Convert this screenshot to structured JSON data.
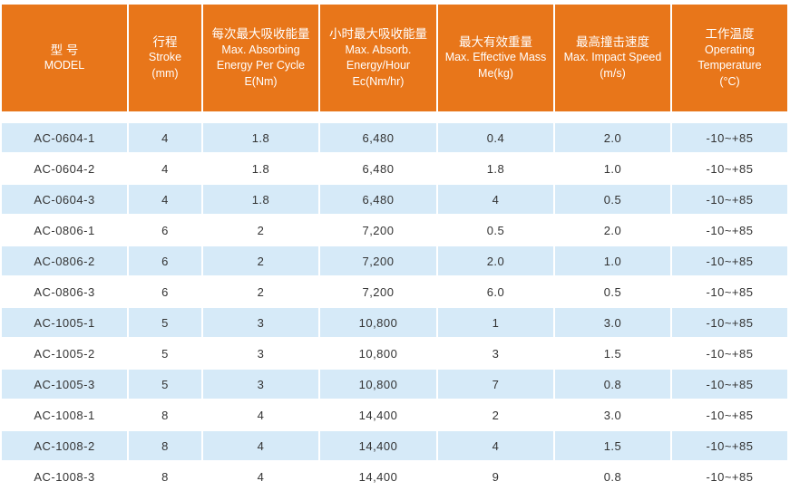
{
  "colors": {
    "header": "#e8761a",
    "stripe": "#d6eaf8"
  },
  "headers": [
    {
      "zh": "型 号",
      "en": [
        "MODEL"
      ]
    },
    {
      "zh": "行程",
      "en": [
        "Stroke",
        "(mm)"
      ]
    },
    {
      "zh": "每次最大吸收能量",
      "en": [
        "Max. Absorbing",
        "Energy Per Cycle",
        "E(Nm)"
      ]
    },
    {
      "zh": "小时最大吸收能量",
      "en": [
        "Max. Absorb.",
        "Energy/Hour",
        "Ec(Nm/hr)"
      ]
    },
    {
      "zh": "最大有效重量",
      "en": [
        "Max. Effective Mass",
        "Me(kg)"
      ]
    },
    {
      "zh": "最高撞击速度",
      "en": [
        "Max. Impact Speed",
        "(m/s)"
      ]
    },
    {
      "zh": "工作温度",
      "en": [
        "Operating",
        "Temperature",
        "(°C)"
      ]
    }
  ],
  "rows": [
    [
      "AC-0604-1",
      "4",
      "1.8",
      "6,480",
      "0.4",
      "2.0",
      "-10~+85"
    ],
    [
      "AC-0604-2",
      "4",
      "1.8",
      "6,480",
      "1.8",
      "1.0",
      "-10~+85"
    ],
    [
      "AC-0604-3",
      "4",
      "1.8",
      "6,480",
      "4",
      "0.5",
      "-10~+85"
    ],
    [
      "AC-0806-1",
      "6",
      "2",
      "7,200",
      "0.5",
      "2.0",
      "-10~+85"
    ],
    [
      "AC-0806-2",
      "6",
      "2",
      "7,200",
      "2.0",
      "1.0",
      "-10~+85"
    ],
    [
      "AC-0806-3",
      "6",
      "2",
      "7,200",
      "6.0",
      "0.5",
      "-10~+85"
    ],
    [
      "AC-1005-1",
      "5",
      "3",
      "10,800",
      "1",
      "3.0",
      "-10~+85"
    ],
    [
      "AC-1005-2",
      "5",
      "3",
      "10,800",
      "3",
      "1.5",
      "-10~+85"
    ],
    [
      "AC-1005-3",
      "5",
      "3",
      "10,800",
      "7",
      "0.8",
      "-10~+85"
    ],
    [
      "AC-1008-1",
      "8",
      "4",
      "14,400",
      "2",
      "3.0",
      "-10~+85"
    ],
    [
      "AC-1008-2",
      "8",
      "4",
      "14,400",
      "4",
      "1.5",
      "-10~+85"
    ],
    [
      "AC-1008-3",
      "8",
      "4",
      "14,400",
      "9",
      "0.8",
      "-10~+85"
    ]
  ]
}
